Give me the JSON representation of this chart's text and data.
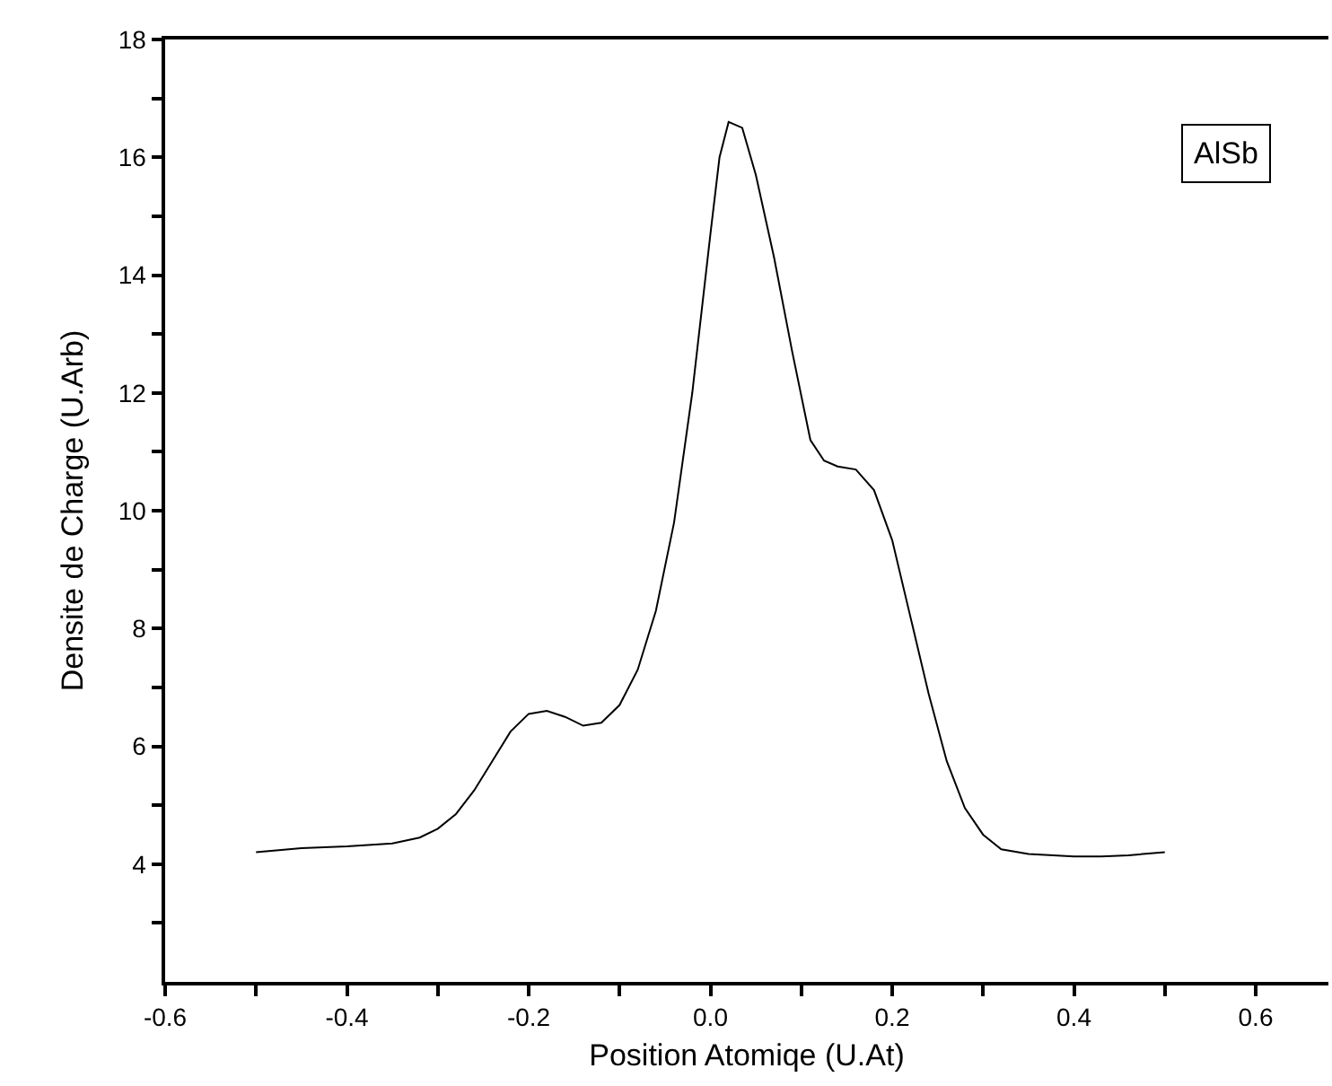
{
  "chart_data": {
    "type": "line",
    "xlabel": "Position Atomiqe (U.At)",
    "ylabel": "Densite de Charge (U.Arb)",
    "annotations": [
      "AlSb"
    ],
    "x": [
      -0.5,
      -0.45,
      -0.4,
      -0.35,
      -0.32,
      -0.3,
      -0.28,
      -0.26,
      -0.24,
      -0.22,
      -0.2,
      -0.18,
      -0.16,
      -0.14,
      -0.12,
      -0.1,
      -0.08,
      -0.06,
      -0.04,
      -0.02,
      0,
      0.01,
      0.02,
      0.035,
      0.05,
      0.07,
      0.09,
      0.11,
      0.125,
      0.14,
      0.16,
      0.18,
      0.2,
      0.22,
      0.24,
      0.26,
      0.28,
      0.3,
      0.32,
      0.35,
      0.4,
      0.43,
      0.46,
      0.5
    ],
    "series": [
      {
        "color": "#000000",
        "values": [
          4.2,
          4.27,
          4.3,
          4.35,
          4.45,
          4.6,
          4.85,
          5.25,
          5.75,
          6.25,
          6.55,
          6.6,
          6.5,
          6.35,
          6.4,
          6.7,
          7.3,
          8.3,
          9.8,
          12,
          14.7,
          16,
          16.6,
          16.5,
          15.7,
          14.3,
          12.7,
          11.2,
          10.85,
          10.75,
          10.7,
          10.35,
          9.5,
          8.2,
          6.9,
          5.75,
          4.95,
          4.5,
          4.25,
          4.17,
          4.13,
          4.13,
          4.15,
          4.2
        ]
      }
    ],
    "xlim": [
      -0.6,
      0.68
    ],
    "ylim": [
      2,
      18
    ],
    "xticks": [
      -0.6,
      {
        "value": -0.5,
        "label": null
      },
      -0.4,
      {
        "value": -0.3,
        "label": null
      },
      -0.2,
      {
        "value": -0.1,
        "label": null
      },
      {
        "value": 0,
        "label": "0.0"
      },
      {
        "value": 0.1,
        "label": null
      },
      0.2,
      {
        "value": 0.3,
        "label": null
      },
      0.4,
      {
        "value": 0.5,
        "label": null
      },
      0.6
    ],
    "yticks": [
      {
        "value": 3,
        "label": null
      },
      4,
      {
        "value": 5,
        "label": null
      },
      6,
      {
        "value": 7,
        "label": null
      },
      8,
      {
        "value": 9,
        "label": null
      },
      10,
      {
        "value": 11,
        "label": null
      },
      12,
      {
        "value": 13,
        "label": null
      },
      14,
      {
        "value": 15,
        "label": null
      },
      16,
      {
        "value": 17,
        "label": null
      },
      18
    ],
    "marker": "none",
    "line_style": "solid"
  }
}
